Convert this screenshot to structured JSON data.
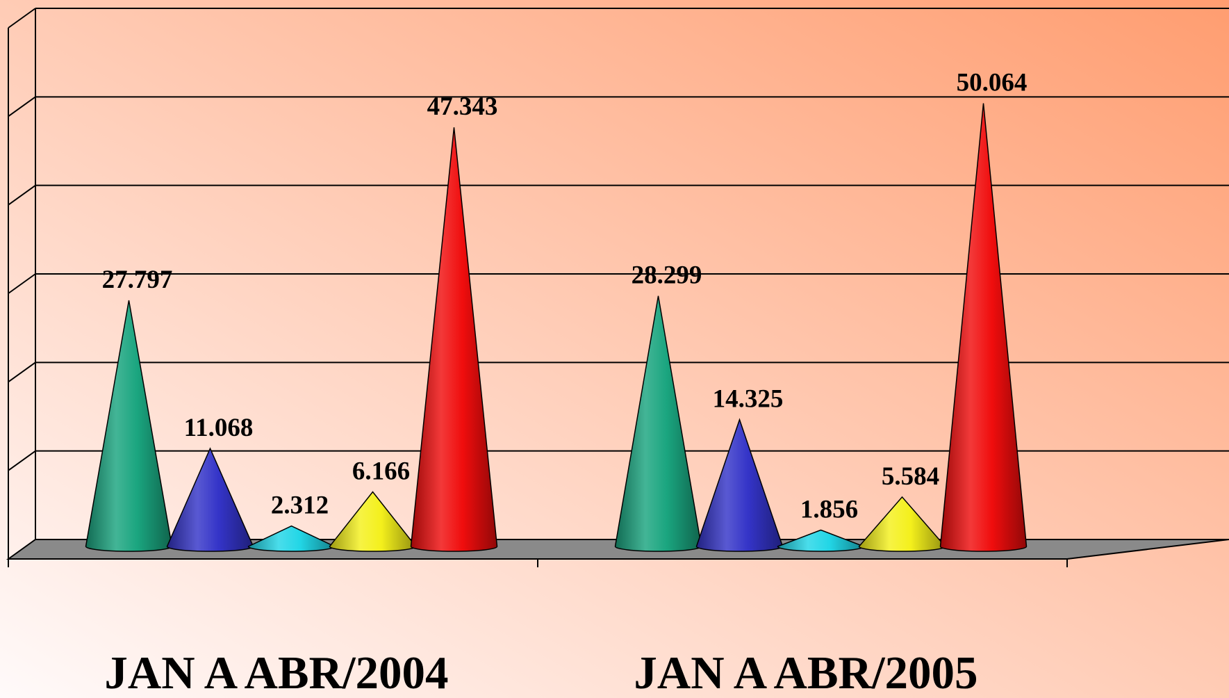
{
  "chart_data": {
    "type": "bar",
    "bar_shape": "cone",
    "view": "3d",
    "categories": [
      "JAN A ABR/2004",
      "JAN A ABR/2005"
    ],
    "series": [
      {
        "color": "#1aa57f",
        "values": [
          27797,
          28299
        ],
        "labels": [
          "27.797",
          "28.299"
        ]
      },
      {
        "color": "#3434c8",
        "values": [
          11068,
          14325
        ],
        "labels": [
          "11.068",
          "14.325"
        ]
      },
      {
        "color": "#22d6e6",
        "values": [
          2312,
          1856
        ],
        "labels": [
          "2.312",
          "1.856"
        ]
      },
      {
        "color": "#f4f01c",
        "values": [
          6166,
          5584
        ],
        "labels": [
          "6.166",
          "5.584"
        ]
      },
      {
        "color": "#f00d0d",
        "values": [
          47343,
          50064
        ],
        "labels": [
          "47.343",
          "50.064"
        ]
      }
    ],
    "ylim": [
      0,
      60000
    ],
    "grid": true,
    "legend": "none",
    "background": {
      "from": "#fffafa",
      "to": "#ff9d70"
    },
    "floor_color": "#8a8a8a"
  }
}
